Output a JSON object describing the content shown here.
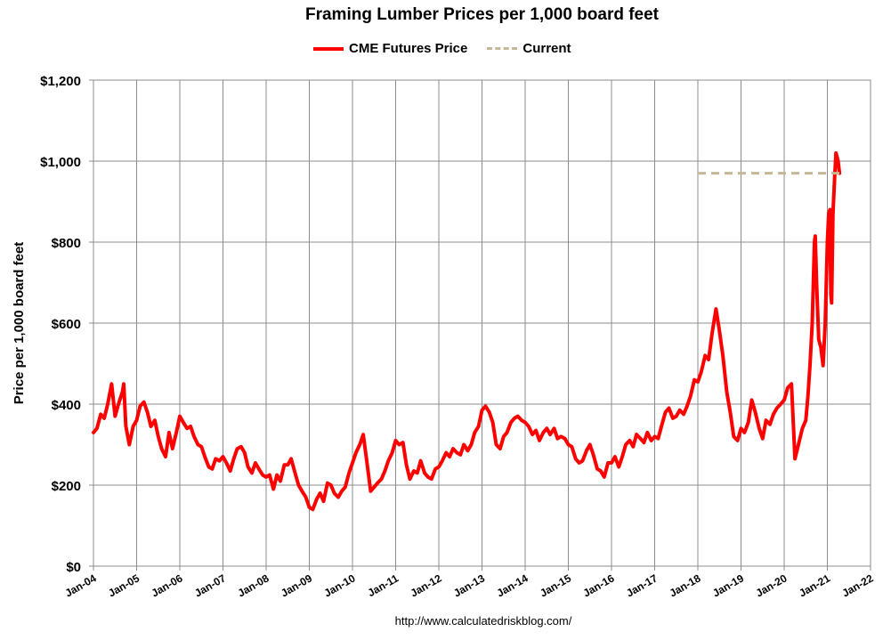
{
  "chart_data": {
    "type": "line",
    "title": "Framing Lumber Prices per 1,000 board feet",
    "ylabel": "Price per 1,000 board feet",
    "xlabel": "",
    "ylim": [
      0,
      1200
    ],
    "xlim": [
      2004.0,
      2022.0
    ],
    "y_ticks": [
      0,
      200,
      400,
      600,
      800,
      1000,
      1200
    ],
    "y_tick_labels": [
      "$0",
      "$200",
      "$400",
      "$600",
      "$800",
      "$1,000",
      "$1,200"
    ],
    "x_ticks": [
      2004,
      2005,
      2006,
      2007,
      2008,
      2009,
      2010,
      2011,
      2012,
      2013,
      2014,
      2015,
      2016,
      2017,
      2018,
      2019,
      2020,
      2021,
      2022
    ],
    "x_tick_labels": [
      "Jan-04",
      "Jan-05",
      "Jan-06",
      "Jan-07",
      "Jan-08",
      "Jan-09",
      "Jan-10",
      "Jan-11",
      "Jan-12",
      "Jan-13",
      "Jan-14",
      "Jan-15",
      "Jan-16",
      "Jan-17",
      "Jan-18",
      "Jan-19",
      "Jan-20",
      "Jan-21",
      "Jan-22"
    ],
    "grid": true,
    "legend_position": "top",
    "series": [
      {
        "name": "CME Futures Price",
        "color": "#ff0000",
        "style": "solid",
        "points": [
          [
            2004.0,
            330
          ],
          [
            2004.08,
            340
          ],
          [
            2004.17,
            375
          ],
          [
            2004.25,
            365
          ],
          [
            2004.33,
            400
          ],
          [
            2004.42,
            450
          ],
          [
            2004.5,
            370
          ],
          [
            2004.58,
            400
          ],
          [
            2004.67,
            430
          ],
          [
            2004.7,
            450
          ],
          [
            2004.75,
            345
          ],
          [
            2004.83,
            300
          ],
          [
            2004.92,
            345
          ],
          [
            2005.0,
            360
          ],
          [
            2005.08,
            395
          ],
          [
            2005.17,
            405
          ],
          [
            2005.25,
            380
          ],
          [
            2005.33,
            345
          ],
          [
            2005.42,
            360
          ],
          [
            2005.5,
            320
          ],
          [
            2005.58,
            290
          ],
          [
            2005.67,
            270
          ],
          [
            2005.75,
            330
          ],
          [
            2005.83,
            290
          ],
          [
            2005.92,
            330
          ],
          [
            2006.0,
            370
          ],
          [
            2006.08,
            355
          ],
          [
            2006.17,
            340
          ],
          [
            2006.25,
            345
          ],
          [
            2006.33,
            320
          ],
          [
            2006.42,
            300
          ],
          [
            2006.5,
            295
          ],
          [
            2006.58,
            270
          ],
          [
            2006.67,
            245
          ],
          [
            2006.75,
            240
          ],
          [
            2006.83,
            265
          ],
          [
            2006.92,
            260
          ],
          [
            2007.0,
            270
          ],
          [
            2007.08,
            255
          ],
          [
            2007.17,
            235
          ],
          [
            2007.25,
            265
          ],
          [
            2007.33,
            290
          ],
          [
            2007.42,
            295
          ],
          [
            2007.5,
            280
          ],
          [
            2007.58,
            245
          ],
          [
            2007.67,
            230
          ],
          [
            2007.75,
            255
          ],
          [
            2007.83,
            240
          ],
          [
            2007.92,
            225
          ],
          [
            2008.0,
            220
          ],
          [
            2008.08,
            225
          ],
          [
            2008.17,
            190
          ],
          [
            2008.25,
            225
          ],
          [
            2008.33,
            210
          ],
          [
            2008.42,
            250
          ],
          [
            2008.5,
            250
          ],
          [
            2008.58,
            265
          ],
          [
            2008.67,
            230
          ],
          [
            2008.75,
            200
          ],
          [
            2008.83,
            185
          ],
          [
            2008.92,
            170
          ],
          [
            2009.0,
            145
          ],
          [
            2009.08,
            140
          ],
          [
            2009.17,
            165
          ],
          [
            2009.25,
            180
          ],
          [
            2009.33,
            160
          ],
          [
            2009.42,
            205
          ],
          [
            2009.5,
            200
          ],
          [
            2009.58,
            180
          ],
          [
            2009.67,
            170
          ],
          [
            2009.75,
            185
          ],
          [
            2009.83,
            195
          ],
          [
            2009.92,
            230
          ],
          [
            2010.0,
            255
          ],
          [
            2010.08,
            280
          ],
          [
            2010.17,
            300
          ],
          [
            2010.25,
            325
          ],
          [
            2010.33,
            260
          ],
          [
            2010.42,
            185
          ],
          [
            2010.5,
            195
          ],
          [
            2010.58,
            205
          ],
          [
            2010.67,
            215
          ],
          [
            2010.75,
            235
          ],
          [
            2010.83,
            260
          ],
          [
            2010.92,
            280
          ],
          [
            2011.0,
            310
          ],
          [
            2011.08,
            300
          ],
          [
            2011.17,
            305
          ],
          [
            2011.25,
            250
          ],
          [
            2011.33,
            215
          ],
          [
            2011.42,
            235
          ],
          [
            2011.5,
            230
          ],
          [
            2011.58,
            260
          ],
          [
            2011.67,
            230
          ],
          [
            2011.75,
            220
          ],
          [
            2011.83,
            215
          ],
          [
            2011.92,
            240
          ],
          [
            2012.0,
            245
          ],
          [
            2012.08,
            260
          ],
          [
            2012.17,
            280
          ],
          [
            2012.25,
            270
          ],
          [
            2012.33,
            290
          ],
          [
            2012.42,
            280
          ],
          [
            2012.5,
            275
          ],
          [
            2012.58,
            300
          ],
          [
            2012.67,
            285
          ],
          [
            2012.75,
            300
          ],
          [
            2012.83,
            330
          ],
          [
            2012.92,
            345
          ],
          [
            2013.0,
            385
          ],
          [
            2013.08,
            395
          ],
          [
            2013.17,
            380
          ],
          [
            2013.25,
            355
          ],
          [
            2013.33,
            300
          ],
          [
            2013.42,
            290
          ],
          [
            2013.5,
            320
          ],
          [
            2013.58,
            330
          ],
          [
            2013.67,
            355
          ],
          [
            2013.75,
            365
          ],
          [
            2013.83,
            370
          ],
          [
            2013.92,
            360
          ],
          [
            2014.0,
            355
          ],
          [
            2014.08,
            345
          ],
          [
            2014.17,
            325
          ],
          [
            2014.25,
            335
          ],
          [
            2014.33,
            310
          ],
          [
            2014.42,
            330
          ],
          [
            2014.5,
            340
          ],
          [
            2014.58,
            325
          ],
          [
            2014.67,
            340
          ],
          [
            2014.75,
            315
          ],
          [
            2014.83,
            320
          ],
          [
            2014.92,
            315
          ],
          [
            2015.0,
            300
          ],
          [
            2015.08,
            295
          ],
          [
            2015.17,
            265
          ],
          [
            2015.25,
            255
          ],
          [
            2015.33,
            260
          ],
          [
            2015.42,
            285
          ],
          [
            2015.5,
            300
          ],
          [
            2015.58,
            275
          ],
          [
            2015.67,
            240
          ],
          [
            2015.75,
            235
          ],
          [
            2015.83,
            220
          ],
          [
            2015.92,
            255
          ],
          [
            2016.0,
            255
          ],
          [
            2016.08,
            270
          ],
          [
            2016.17,
            245
          ],
          [
            2016.25,
            270
          ],
          [
            2016.33,
            300
          ],
          [
            2016.42,
            310
          ],
          [
            2016.5,
            295
          ],
          [
            2016.58,
            325
          ],
          [
            2016.67,
            315
          ],
          [
            2016.75,
            305
          ],
          [
            2016.83,
            330
          ],
          [
            2016.92,
            310
          ],
          [
            2017.0,
            320
          ],
          [
            2017.08,
            315
          ],
          [
            2017.17,
            350
          ],
          [
            2017.25,
            380
          ],
          [
            2017.33,
            390
          ],
          [
            2017.42,
            365
          ],
          [
            2017.5,
            370
          ],
          [
            2017.58,
            385
          ],
          [
            2017.67,
            375
          ],
          [
            2017.75,
            395
          ],
          [
            2017.83,
            420
          ],
          [
            2017.92,
            460
          ],
          [
            2018.0,
            455
          ],
          [
            2018.08,
            480
          ],
          [
            2018.17,
            520
          ],
          [
            2018.25,
            510
          ],
          [
            2018.33,
            575
          ],
          [
            2018.42,
            635
          ],
          [
            2018.5,
            580
          ],
          [
            2018.58,
            520
          ],
          [
            2018.67,
            430
          ],
          [
            2018.75,
            380
          ],
          [
            2018.83,
            320
          ],
          [
            2018.92,
            310
          ],
          [
            2019.0,
            340
          ],
          [
            2019.08,
            330
          ],
          [
            2019.17,
            355
          ],
          [
            2019.25,
            410
          ],
          [
            2019.33,
            380
          ],
          [
            2019.42,
            340
          ],
          [
            2019.5,
            315
          ],
          [
            2019.58,
            360
          ],
          [
            2019.67,
            350
          ],
          [
            2019.75,
            375
          ],
          [
            2019.83,
            390
          ],
          [
            2019.92,
            400
          ],
          [
            2020.0,
            410
          ],
          [
            2020.08,
            440
          ],
          [
            2020.17,
            450
          ],
          [
            2020.25,
            265
          ],
          [
            2020.33,
            300
          ],
          [
            2020.42,
            340
          ],
          [
            2020.5,
            360
          ],
          [
            2020.55,
            420
          ],
          [
            2020.6,
            500
          ],
          [
            2020.65,
            600
          ],
          [
            2020.7,
            800
          ],
          [
            2020.72,
            815
          ],
          [
            2020.75,
            700
          ],
          [
            2020.8,
            560
          ],
          [
            2020.85,
            540
          ],
          [
            2020.9,
            495
          ],
          [
            2020.95,
            600
          ],
          [
            2021.0,
            800
          ],
          [
            2021.03,
            870
          ],
          [
            2021.06,
            880
          ],
          [
            2021.08,
            670
          ],
          [
            2021.1,
            650
          ],
          [
            2021.13,
            870
          ],
          [
            2021.17,
            960
          ],
          [
            2021.2,
            1020
          ],
          [
            2021.25,
            1000
          ],
          [
            2021.28,
            970
          ]
        ]
      },
      {
        "name": "Current",
        "color": "#c4b896",
        "style": "dashed",
        "points": [
          [
            2018.0,
            970
          ],
          [
            2021.28,
            970
          ]
        ]
      }
    ]
  },
  "source_url": "http://www.calculatedriskblog.com/"
}
